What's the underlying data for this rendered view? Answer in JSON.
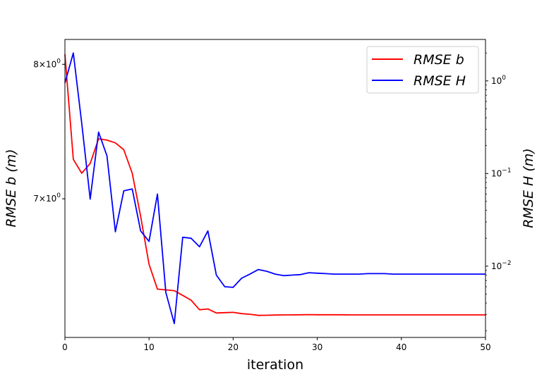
{
  "chart_data": {
    "type": "line",
    "xlabel": "iteration",
    "ylabel_left": "RMSE b (m)",
    "ylabel_right": "RMSE H (m)",
    "xlim": [
      0,
      50
    ],
    "x_ticks": [
      0,
      10,
      20,
      30,
      40,
      50
    ],
    "ylim_left": [
      6.1,
      8.2
    ],
    "yscale_left": "log",
    "ylim_right": [
      0.0017,
      2.8
    ],
    "yscale_right": "log",
    "left_tick_labels": [
      {
        "value": 8,
        "mantissa": "8",
        "exponent": "0"
      },
      {
        "value": 7,
        "mantissa": "7",
        "exponent": "0"
      }
    ],
    "right_tick_labels": [
      {
        "value": 1,
        "base": "10",
        "exponent": "0"
      },
      {
        "value": 0.1,
        "base": "10",
        "exponent": "−1"
      },
      {
        "value": 0.01,
        "base": "10",
        "exponent": "−2"
      }
    ],
    "legend_position": "top-right",
    "grid": false,
    "series": [
      {
        "name": "RMSE b",
        "axis": "left",
        "color": "#ff0000",
        "x": [
          0,
          1,
          2,
          3,
          4,
          5,
          6,
          7,
          8,
          9,
          10,
          11,
          12,
          13,
          14,
          15,
          16,
          17,
          18,
          19,
          20,
          21,
          22,
          23,
          24,
          25,
          26,
          27,
          28,
          29,
          30,
          31,
          32,
          33,
          34,
          35,
          36,
          37,
          38,
          39,
          40,
          41,
          42,
          43,
          44,
          45,
          46,
          47,
          48,
          49,
          50
        ],
        "y": [
          8.08,
          7.28,
          7.18,
          7.25,
          7.43,
          7.42,
          7.4,
          7.35,
          7.18,
          6.88,
          6.56,
          6.4,
          6.395,
          6.39,
          6.36,
          6.33,
          6.27,
          6.275,
          6.25,
          6.252,
          6.254,
          6.246,
          6.242,
          6.235,
          6.236,
          6.237,
          6.238,
          6.238,
          6.239,
          6.24,
          6.239,
          6.239,
          6.239,
          6.239,
          6.238,
          6.238,
          6.238,
          6.238,
          6.238,
          6.238,
          6.238,
          6.238,
          6.238,
          6.238,
          6.238,
          6.238,
          6.238,
          6.238,
          6.238,
          6.238,
          6.238
        ]
      },
      {
        "name": "RMSE H",
        "axis": "right",
        "color": "#0000ff",
        "x": [
          0,
          1,
          2,
          3,
          4,
          5,
          6,
          7,
          8,
          9,
          10,
          11,
          12,
          13,
          14,
          15,
          16,
          17,
          18,
          19,
          20,
          21,
          22,
          23,
          24,
          25,
          26,
          27,
          28,
          29,
          30,
          31,
          32,
          33,
          34,
          35,
          36,
          37,
          38,
          39,
          40,
          41,
          42,
          43,
          44,
          45,
          46,
          47,
          48,
          49,
          50
        ],
        "y": [
          0.95,
          2.0,
          0.35,
          0.053,
          0.28,
          0.155,
          0.0235,
          0.065,
          0.068,
          0.024,
          0.0185,
          0.06,
          0.0052,
          0.0024,
          0.0205,
          0.02,
          0.0162,
          0.024,
          0.008,
          0.006,
          0.0059,
          0.0074,
          0.0082,
          0.0092,
          0.0088,
          0.0082,
          0.0079,
          0.008,
          0.0081,
          0.0085,
          0.0084,
          0.0083,
          0.0082,
          0.0082,
          0.0082,
          0.0082,
          0.0083,
          0.0083,
          0.0083,
          0.0082,
          0.0082,
          0.0082,
          0.0082,
          0.0082,
          0.0082,
          0.0082,
          0.0082,
          0.0082,
          0.0082,
          0.0082,
          0.0082
        ]
      }
    ]
  }
}
